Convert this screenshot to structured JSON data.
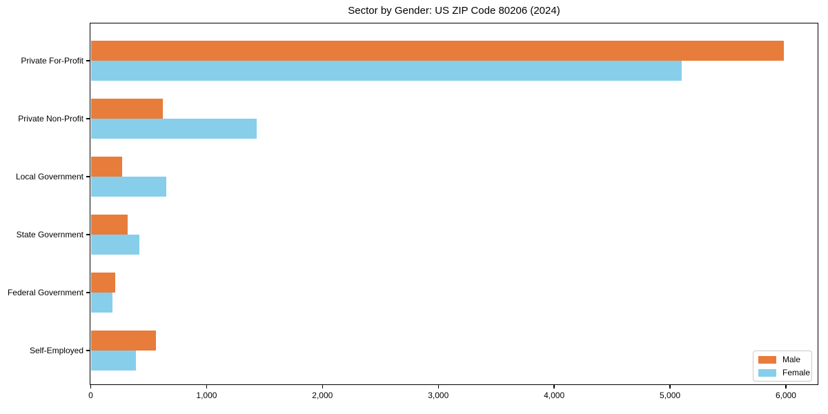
{
  "chart_data": {
    "type": "bar",
    "orientation": "horizontal",
    "title": "Sector by Gender: US ZIP Code 80206 (2024)",
    "categories": [
      "Private For-Profit",
      "Private Non-Profit",
      "Local Government",
      "State Government",
      "Federal Government",
      "Self-Employed"
    ],
    "series": [
      {
        "name": "Male",
        "color": "#E87C3B",
        "values": [
          5980,
          620,
          270,
          320,
          210,
          560
        ]
      },
      {
        "name": "Female",
        "color": "#87CEEB",
        "values": [
          5100,
          1430,
          650,
          420,
          190,
          390
        ]
      }
    ],
    "xlabel": "",
    "ylabel": "",
    "xlim": [
      0,
      6280
    ],
    "xticks": [
      0,
      1000,
      2000,
      3000,
      4000,
      5000,
      6000
    ],
    "xtick_labels": [
      "0",
      "1,000",
      "2,000",
      "3,000",
      "4,000",
      "5,000",
      "6,000"
    ],
    "grid": false,
    "legend_position": "lower right"
  },
  "legend": {
    "items": [
      {
        "label": "Male",
        "color": "#E87C3B"
      },
      {
        "label": "Female",
        "color": "#87CEEB"
      }
    ]
  },
  "colors": {
    "male": "#E87C3B",
    "female": "#87CEEB",
    "axis": "#000000",
    "legend_border": "#c9c9c9",
    "background": "#ffffff"
  }
}
